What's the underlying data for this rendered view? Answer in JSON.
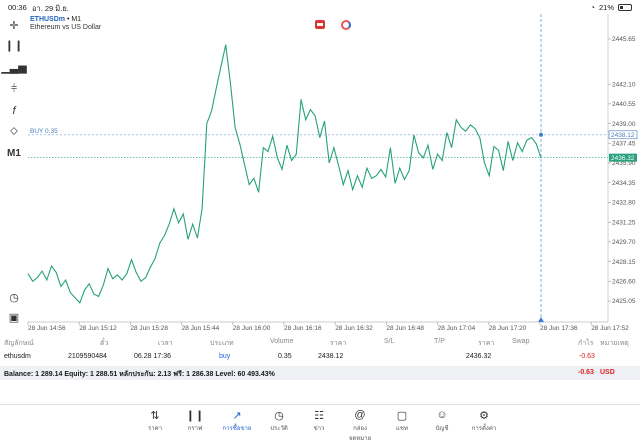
{
  "status_bar": {
    "time": "00:36",
    "date": "อา. 29 มิ.ย.",
    "battery": "21%"
  },
  "chart": {
    "symbol": "ETHUSDm",
    "timeframe_suffix": " • M1",
    "description": "Ethereum vs US Dollar",
    "buy_line_label": "BUY 0.35",
    "buy_price_tag": "2438.12",
    "current_price_tag": "2436.32",
    "price_ticks": [
      "2445.65",
      "2442.10",
      "2440.55",
      "2439.00",
      "2437.45",
      "2435.90",
      "2434.35",
      "2432.80",
      "2431.25",
      "2429.70",
      "2428.15",
      "2426.60",
      "2425.05"
    ],
    "time_ticks": [
      "28 Jun 14:56",
      "28 Jun 15:12",
      "28 Jun 15:28",
      "28 Jun 15:44",
      "28 Jun 16:00",
      "28 Jun 16:16",
      "28 Jun 16:32",
      "28 Jun 16:48",
      "28 Jun 17:04",
      "28 Jun 17:20",
      "28 Jun 17:36",
      "28 Jun 17:52"
    ],
    "line_color": "#26a17b",
    "prices": [
      2427.2,
      2426.6,
      2426.9,
      2427.4,
      2426.7,
      2427.8,
      2427.3,
      2426.2,
      2426.7,
      2425.7,
      2425.3,
      2424.9,
      2425.9,
      2426.4,
      2425.6,
      2425.4,
      2426.3,
      2427.6,
      2426.8,
      2427.1,
      2426.7,
      2427.2,
      2428.3,
      2427.3,
      2426.6,
      2426.9,
      2427.7,
      2428.4,
      2429.6,
      2430.2,
      2431.1,
      2432.3,
      2431.2,
      2431.9,
      2429.9,
      2431.1,
      2430.0,
      2432.3,
      2439.0,
      2440.0,
      2441.8,
      2443.5,
      2445.2,
      2442.2,
      2438.7,
      2437.4,
      2435.8,
      2434.2,
      2434.7,
      2433.6,
      2437.1,
      2436.8,
      2438.0,
      2436.3,
      2435.4,
      2437.3,
      2436.1,
      2436.6,
      2440.9,
      2439.3,
      2440.1,
      2439.6,
      2437.9,
      2439.2,
      2435.9,
      2437.1,
      2435.7,
      2434.2,
      2435.3,
      2433.8,
      2434.9,
      2434.0,
      2435.5,
      2434.7,
      2434.9,
      2435.4,
      2434.8,
      2437.1,
      2434.3,
      2435.5,
      2434.6,
      2435.3,
      2438.1,
      2436.7,
      2436.3,
      2437.3,
      2435.4,
      2436.6,
      2436.1,
      2438.3,
      2437.1,
      2439.3,
      2438.7,
      2438.4,
      2438.9,
      2438.6,
      2437.9,
      2435.9,
      2434.9,
      2437.2,
      2436.9,
      2435.3,
      2437.6,
      2436.1,
      2437.5,
      2436.8,
      2437.7,
      2437.9,
      2437.4,
      2436.3
    ]
  },
  "toolbar": {
    "tools": [
      "crosshair-icon",
      "candles-icon",
      "bars-icon",
      "indicators-icon",
      "function-icon",
      "objects-icon"
    ],
    "timeframe": "M1",
    "bottom_tools": [
      "clock-icon",
      "calendar-icon"
    ]
  },
  "trade_table": {
    "headers": [
      "สัญลักษณ์",
      "ตั๋ว",
      "เวลา",
      "ประเภท",
      "Volume",
      "ราคา",
      "S/L",
      "T/P",
      "ราคา",
      "Swap",
      "กำไร",
      "หมายเหตุ"
    ],
    "row": {
      "symbol": "ethusdm",
      "ticket": "2109590484",
      "time": "06.28 17:36",
      "type": "buy",
      "volume": "0.35",
      "open_price": "2438.12",
      "current_price": "2436.32",
      "profit": "-0.63"
    },
    "balance_text": "Balance: 1 289.14 Equity: 1 288.51 หลักประกัน: 2.13 ฟรี: 1 286.38 Level: 60 493.43%",
    "total_profit": "-0.63",
    "currency": "USD"
  },
  "tabs": [
    {
      "label": "ราคา",
      "icon": "arrows-updown-icon"
    },
    {
      "label": "กราฟ",
      "icon": "candles-icon"
    },
    {
      "label": "การซื้อขาย",
      "icon": "trade-chart-icon",
      "active": true
    },
    {
      "label": "ประวัติ",
      "icon": "history-icon"
    },
    {
      "label": "ข่าว",
      "icon": "news-icon"
    },
    {
      "label": "กล่องจดหมาย",
      "icon": "mail-icon"
    },
    {
      "label": "แชท",
      "icon": "chat-icon"
    },
    {
      "label": "บัญชี",
      "icon": "account-icon"
    },
    {
      "label": "การตั้งค่า",
      "icon": "settings-icon"
    }
  ]
}
